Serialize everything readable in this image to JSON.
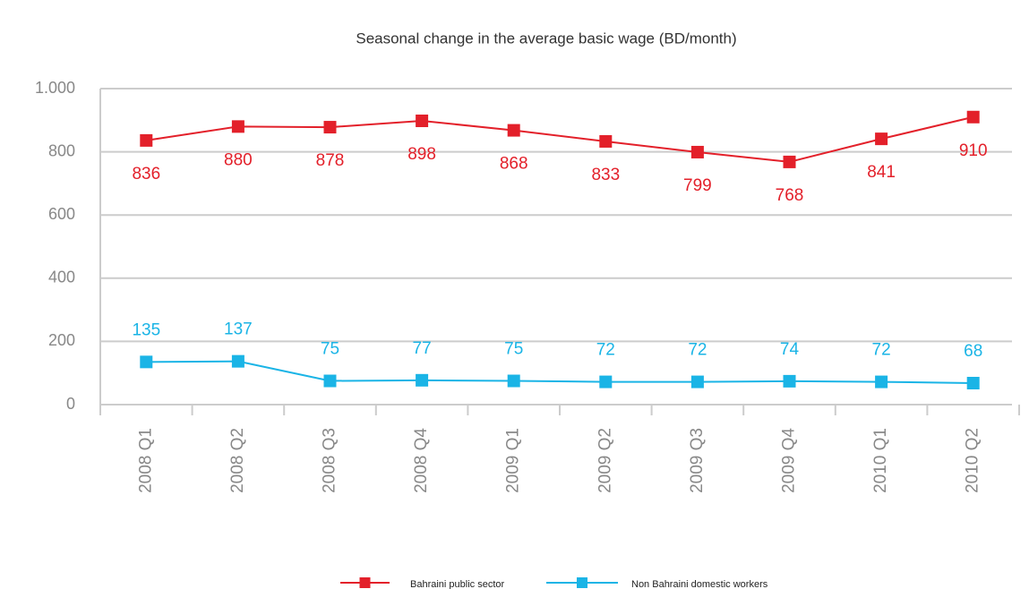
{
  "chart_data": {
    "type": "line",
    "title": "Seasonal change in the average basic wage (BD/month)",
    "categories": [
      "2008 Q1",
      "2008 Q2",
      "2008 Q3",
      "2008 Q4",
      "2009 Q1",
      "2009 Q2",
      "2009 Q3",
      "2009 Q4",
      "2010 Q1",
      "2010 Q2"
    ],
    "series": [
      {
        "name": "Bahraini public sector",
        "color": "#e3202a",
        "values": [
          836,
          880,
          878,
          898,
          868,
          833,
          799,
          768,
          841,
          910
        ]
      },
      {
        "name": "Non Bahraini domestic workers",
        "color": "#1ab4e6",
        "values": [
          135,
          137,
          75,
          77,
          75,
          72,
          72,
          74,
          72,
          68
        ]
      }
    ],
    "ylim": [
      0,
      1000
    ],
    "yticks": [
      0,
      200,
      400,
      600,
      800,
      {
        "value": 1000,
        "label": "1.000"
      }
    ],
    "grid": true,
    "legend": "bottom"
  }
}
